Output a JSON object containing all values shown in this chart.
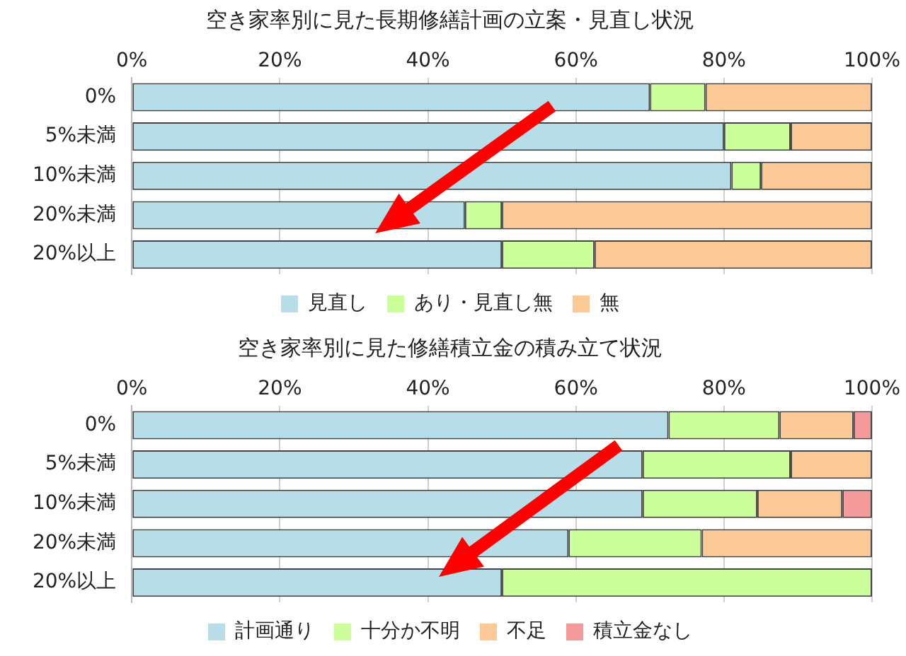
{
  "chart_data": [
    {
      "type": "bar",
      "orientation": "horizontal",
      "stacked": true,
      "title": "空き家率別に見た長期修繕計画の立案・見直し状況",
      "categories": [
        "0%",
        "5%未満",
        "10%未満",
        "20%未満",
        "20%以上"
      ],
      "series": [
        {
          "name": "見直し",
          "color": "#b7dde8",
          "values": [
            70,
            80,
            81,
            45,
            50
          ]
        },
        {
          "name": "あり・見直し無",
          "color": "#ccff99",
          "values": [
            7.5,
            9,
            4,
            5,
            12.5
          ]
        },
        {
          "name": "無",
          "color": "#fcc996",
          "values": [
            22.5,
            11,
            15,
            50,
            37.5
          ]
        }
      ],
      "xlim": [
        0,
        100
      ],
      "xticks": [
        {
          "value": 0,
          "label": "0%"
        },
        {
          "value": 20,
          "label": "20%"
        },
        {
          "value": 40,
          "label": "40%"
        },
        {
          "value": 60,
          "label": "60%"
        },
        {
          "value": 80,
          "label": "80%"
        },
        {
          "value": 100,
          "label": "100%"
        }
      ],
      "grid": "x",
      "legend": "bottom"
    },
    {
      "type": "bar",
      "orientation": "horizontal",
      "stacked": true,
      "title": "空き家率別に見た修繕積立金の積み立て状況",
      "categories": [
        "0%",
        "5%未満",
        "10%未満",
        "20%未満",
        "20%以上"
      ],
      "series": [
        {
          "name": "計画通り",
          "color": "#b7dde8",
          "values": [
            72.5,
            69,
            69,
            59,
            50
          ]
        },
        {
          "name": "十分か不明",
          "color": "#ccff99",
          "values": [
            15,
            20,
            15.5,
            18,
            50
          ]
        },
        {
          "name": "不足",
          "color": "#fcc996",
          "values": [
            10,
            11,
            11.5,
            23,
            0
          ]
        },
        {
          "name": "積立金なし",
          "color": "#f59a9a",
          "values": [
            2.5,
            0,
            4,
            0,
            0
          ]
        }
      ],
      "xlim": [
        0,
        100
      ],
      "xticks": [
        {
          "value": 0,
          "label": "0%"
        },
        {
          "value": 20,
          "label": "20%"
        },
        {
          "value": 40,
          "label": "40%"
        },
        {
          "value": 60,
          "label": "60%"
        },
        {
          "value": 80,
          "label": "80%"
        },
        {
          "value": 100,
          "label": "100%"
        }
      ],
      "grid": "x",
      "legend": "bottom"
    }
  ]
}
